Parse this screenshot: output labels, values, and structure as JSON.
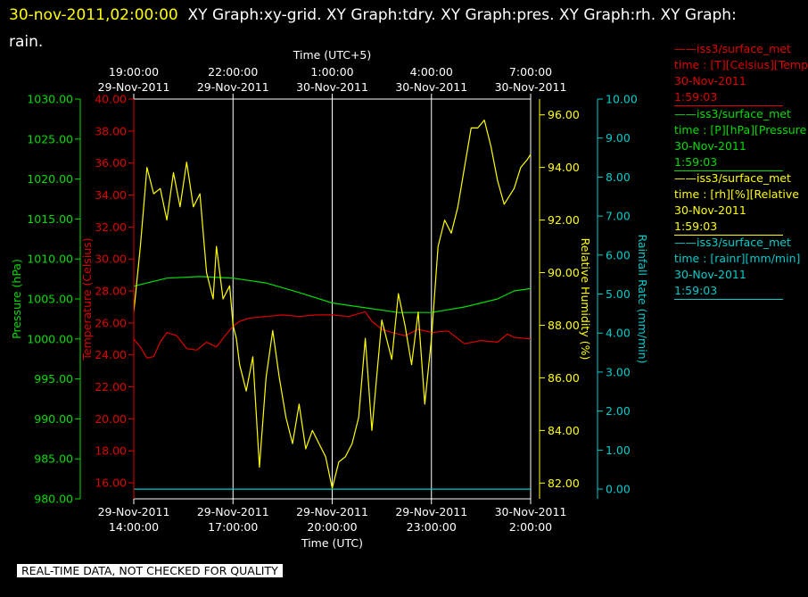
{
  "header": {
    "timestamp": "30-nov-2011,02:00:00",
    "titles": "XY Graph:xy-grid.  XY Graph:tdry.  XY Graph:pres.  XY Graph:rh.  XY Graph: rain."
  },
  "disclaimer": "REAL-TIME DATA, NOT CHECKED FOR QUALITY",
  "colors": {
    "pressure": "#00dd00",
    "temperature": "#dd0000",
    "humidity": "#ffff00",
    "rain": "#00cccc",
    "grid": "#ffffff",
    "background": "#000000"
  },
  "legend": [
    {
      "line1": "——iss3/surface_met",
      "line2": "time : [T][Celsius][Temp",
      "line3": "30-Nov-2011",
      "line4": "1:59:03",
      "color": "#dd0000"
    },
    {
      "line1": "——iss3/surface_met",
      "line2": "time : [P][hPa][Pressure",
      "line3": "30-Nov-2011",
      "line4": "1:59:03",
      "color": "#00dd00"
    },
    {
      "line1": "——iss3/surface_met",
      "line2": "time : [rh][%][Relative",
      "line3": "30-Nov-2011",
      "line4": "1:59:03",
      "color": "#ffff00"
    },
    {
      "line1": "——iss3/surface_met",
      "line2": "time : [rainr][mm/min]",
      "line3": "30-Nov-2011",
      "line4": "1:59:03",
      "color": "#00cccc"
    }
  ],
  "chart_data": {
    "type": "line",
    "top_axis_title": "Time (UTC+5)",
    "bottom_axis_title": "Time (UTC)",
    "x_range_hours": [
      0,
      12
    ],
    "top_ticks": [
      {
        "h": 0,
        "time": "19:00:00",
        "date": "29-Nov-2011"
      },
      {
        "h": 3,
        "time": "22:00:00",
        "date": "29-Nov-2011"
      },
      {
        "h": 6,
        "time": "1:00:00",
        "date": "30-Nov-2011"
      },
      {
        "h": 9,
        "time": "4:00:00",
        "date": "30-Nov-2011"
      },
      {
        "h": 12,
        "time": "7:00:00",
        "date": "30-Nov-2011"
      }
    ],
    "bottom_ticks": [
      {
        "h": 0,
        "date": "29-Nov-2011",
        "time": "14:00:00"
      },
      {
        "h": 3,
        "date": "29-Nov-2011",
        "time": "17:00:00"
      },
      {
        "h": 6,
        "date": "29-Nov-2011",
        "time": "20:00:00"
      },
      {
        "h": 9,
        "date": "29-Nov-2011",
        "time": "23:00:00"
      },
      {
        "h": 12,
        "date": "30-Nov-2011",
        "time": "2:00:00"
      }
    ],
    "axes": {
      "pressure": {
        "label": "Pressure (hPa)",
        "min": 980,
        "max": 1030,
        "ticks": [
          "980.00",
          "985.00",
          "990.00",
          "995.00",
          "1000.00",
          "1005.00",
          "1010.00",
          "1015.00",
          "1020.00",
          "1025.00",
          "1030.00"
        ]
      },
      "temperature": {
        "label": "Temperature (Celsius)",
        "min": 15,
        "max": 40,
        "ticks": [
          "16.00",
          "18.00",
          "20.00",
          "22.00",
          "24.00",
          "26.00",
          "28.00",
          "30.00",
          "32.00",
          "34.00",
          "36.00",
          "38.00",
          "40.00"
        ]
      },
      "humidity": {
        "label": "Relative Humidity (%)",
        "min": 81.4,
        "max": 96.6,
        "ticks": [
          "82.00",
          "84.00",
          "86.00",
          "88.00",
          "90.00",
          "92.00",
          "94.00",
          "96.00"
        ]
      },
      "rain": {
        "label": "Rainfall Rate (mm/min)",
        "min": -0.25,
        "max": 10,
        "ticks": [
          "0.00",
          "1.00",
          "2.00",
          "3.00",
          "4.00",
          "5.00",
          "6.00",
          "7.00",
          "8.00",
          "9.00",
          "10.00"
        ]
      }
    },
    "series": [
      {
        "name": "Pressure",
        "axis": "pressure",
        "x": [
          0,
          1,
          2,
          3,
          4,
          5,
          6,
          7,
          8,
          8.5,
          9,
          10,
          11,
          11.5,
          12
        ],
        "y": [
          1006.6,
          1007.6,
          1007.8,
          1007.6,
          1007.0,
          1005.8,
          1004.5,
          1003.9,
          1003.3,
          1003.3,
          1003.3,
          1004.0,
          1005.0,
          1006.0,
          1006.3
        ]
      },
      {
        "name": "Temperature",
        "axis": "temperature",
        "x": [
          0,
          0.2,
          0.4,
          0.6,
          0.8,
          1.0,
          1.3,
          1.6,
          1.9,
          2.2,
          2.5,
          2.8,
          3.0,
          3.2,
          3.5,
          4.0,
          4.5,
          5.0,
          5.5,
          6.0,
          6.5,
          7.0,
          7.2,
          7.5,
          7.8,
          8.2,
          8.6,
          9.0,
          9.5,
          10.0,
          10.5,
          11.0,
          11.3,
          11.5,
          12.0
        ],
        "y": [
          25.0,
          24.5,
          23.8,
          23.9,
          24.8,
          25.4,
          25.2,
          24.4,
          24.3,
          24.8,
          24.5,
          25.3,
          25.8,
          26.1,
          26.3,
          26.4,
          26.5,
          26.4,
          26.5,
          26.5,
          26.4,
          26.7,
          26.1,
          25.6,
          25.4,
          25.2,
          25.6,
          25.4,
          25.5,
          24.7,
          24.9,
          24.8,
          25.3,
          25.1,
          25.0
        ]
      },
      {
        "name": "Relative Humidity",
        "axis": "humidity",
        "x": [
          0,
          0.2,
          0.4,
          0.6,
          0.8,
          1.0,
          1.2,
          1.4,
          1.6,
          1.8,
          2.0,
          2.2,
          2.4,
          2.5,
          2.7,
          2.9,
          3.0,
          3.1,
          3.2,
          3.4,
          3.6,
          3.8,
          4.0,
          4.2,
          4.4,
          4.6,
          4.8,
          5.0,
          5.2,
          5.4,
          5.6,
          5.8,
          6.0,
          6.2,
          6.4,
          6.6,
          6.8,
          7.0,
          7.2,
          7.5,
          7.8,
          8.0,
          8.2,
          8.4,
          8.6,
          8.8,
          9.0,
          9.2,
          9.4,
          9.6,
          9.8,
          10.0,
          10.2,
          10.4,
          10.6,
          10.8,
          11.0,
          11.2,
          11.5,
          11.7,
          11.9,
          12.0
        ],
        "y": [
          88.5,
          91.0,
          94.0,
          93.0,
          93.2,
          92.0,
          93.8,
          92.5,
          94.2,
          92.5,
          93.0,
          90.0,
          89.0,
          91.0,
          89.0,
          89.5,
          88.0,
          87.5,
          86.5,
          85.5,
          86.8,
          82.6,
          86.0,
          87.8,
          86.0,
          84.5,
          83.5,
          85.0,
          83.3,
          84.0,
          83.5,
          83.0,
          81.8,
          82.8,
          83.0,
          83.5,
          84.5,
          87.5,
          84.0,
          88.2,
          86.7,
          89.2,
          88.0,
          86.5,
          88.5,
          85.0,
          87.5,
          91.0,
          92.0,
          91.5,
          92.5,
          94.0,
          95.5,
          95.5,
          95.8,
          94.8,
          93.5,
          92.6,
          93.2,
          94.0,
          94.3,
          94.5
        ]
      },
      {
        "name": "Rainfall Rate",
        "axis": "rain",
        "x": [
          0,
          12
        ],
        "y": [
          0,
          0
        ]
      }
    ]
  }
}
